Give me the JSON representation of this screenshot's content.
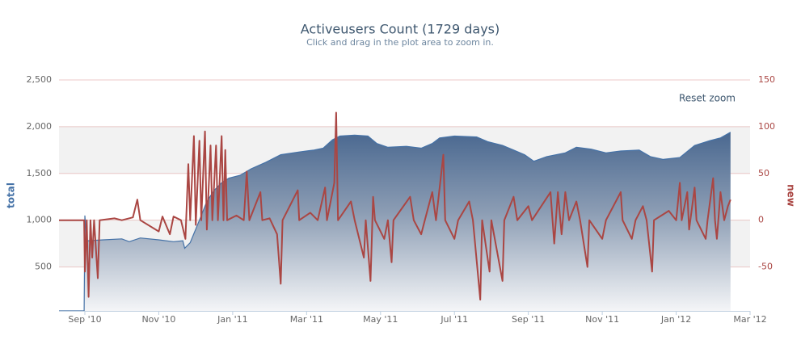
{
  "chart_data": {
    "type": "area-line",
    "title": "Activeusers Count (1729 days)",
    "subtitle": "Click and drag in the plot area to zoom in.",
    "button": "Reset zoom",
    "y_label": "total",
    "y2_label": "new",
    "xlim": [
      -0.7,
      18.0
    ],
    "xticks": [
      {
        "value": 0,
        "label": "Sep '10"
      },
      {
        "value": 2,
        "label": "Nov '10"
      },
      {
        "value": 4,
        "label": "Jan '11"
      },
      {
        "value": 6,
        "label": "Mar '11"
      },
      {
        "value": 8,
        "label": "May '11"
      },
      {
        "value": 10,
        "label": "Jul '11"
      },
      {
        "value": 12,
        "label": "Sep '11"
      },
      {
        "value": 14,
        "label": "Nov '11"
      },
      {
        "value": 16,
        "label": "Jan '12"
      },
      {
        "value": 18,
        "label": "Mar '12"
      }
    ],
    "ylim": [
      30,
      2500
    ],
    "yticks": [
      500,
      {
        "value": 1000,
        "label": "1,000"
      },
      {
        "value": 1500,
        "label": "1,500"
      },
      {
        "value": 2000,
        "label": "2,000"
      },
      {
        "value": 2500,
        "label": "2,500"
      }
    ],
    "y2lim": [
      -97,
      150
    ],
    "y2ticks": [
      -50,
      0,
      50,
      100,
      150
    ],
    "grid": true,
    "alternate_bands": true,
    "series": [
      {
        "name": "total",
        "color": "#4572a7",
        "kind": "area",
        "x": [
          -0.7,
          -0.02,
          0,
          0.05,
          0.5,
          1.0,
          1.2,
          1.5,
          2.0,
          2.4,
          2.65,
          2.7,
          2.85,
          3.1,
          3.3,
          3.5,
          3.7,
          3.9,
          4.2,
          4.5,
          4.9,
          5.3,
          5.8,
          6.2,
          6.45,
          6.7,
          6.9,
          7.3,
          7.66,
          7.9,
          8.2,
          8.7,
          9.1,
          9.4,
          9.6,
          10.0,
          10.6,
          10.9,
          11.3,
          11.6,
          11.9,
          12.15,
          12.5,
          13.0,
          13.3,
          13.7,
          14.1,
          14.5,
          15.0,
          15.3,
          15.65,
          16.1,
          16.5,
          16.9,
          17.2,
          17.47
        ],
        "values": [
          30,
          30,
          1050,
          780,
          790,
          800,
          770,
          810,
          790,
          770,
          780,
          700,
          760,
          1000,
          1200,
          1320,
          1400,
          1450,
          1480,
          1550,
          1620,
          1700,
          1730,
          1750,
          1770,
          1860,
          1900,
          1910,
          1900,
          1820,
          1780,
          1790,
          1770,
          1820,
          1880,
          1900,
          1890,
          1840,
          1800,
          1750,
          1700,
          1630,
          1680,
          1720,
          1780,
          1760,
          1720,
          1740,
          1750,
          1680,
          1650,
          1670,
          1800,
          1850,
          1880,
          1940
        ]
      },
      {
        "name": "new",
        "color": "#aa4643",
        "kind": "line",
        "axis": "y2",
        "x": [
          -0.7,
          -0.02,
          0,
          0.05,
          0.1,
          0.15,
          0.2,
          0.25,
          0.35,
          0.4,
          0.8,
          1.0,
          1.3,
          1.42,
          1.5,
          2.0,
          2.1,
          2.3,
          2.4,
          2.6,
          2.72,
          2.8,
          2.85,
          2.95,
          3.0,
          3.1,
          3.15,
          3.25,
          3.3,
          3.4,
          3.45,
          3.55,
          3.6,
          3.7,
          3.75,
          3.8,
          3.85,
          4.1,
          4.3,
          4.38,
          4.45,
          4.75,
          4.8,
          5.0,
          5.2,
          5.3,
          5.35,
          5.76,
          5.8,
          6.1,
          6.3,
          6.5,
          6.55,
          6.75,
          6.8,
          6.85,
          7.2,
          7.3,
          7.55,
          7.6,
          7.73,
          7.8,
          7.85,
          8.1,
          8.2,
          8.3,
          8.35,
          8.8,
          8.9,
          9.1,
          9.2,
          9.4,
          9.5,
          9.7,
          9.75,
          10.0,
          10.1,
          10.4,
          10.5,
          10.7,
          10.75,
          10.95,
          11.0,
          11.3,
          11.35,
          11.6,
          11.7,
          12.0,
          12.1,
          12.6,
          12.7,
          12.8,
          12.9,
          13.0,
          13.1,
          13.3,
          13.4,
          13.6,
          13.65,
          14.0,
          14.1,
          14.5,
          14.55,
          14.8,
          14.9,
          15.1,
          15.2,
          15.35,
          15.4,
          15.8,
          16.0,
          16.1,
          16.15,
          16.3,
          16.35,
          16.5,
          16.55,
          16.8,
          16.85,
          17.0,
          17.05,
          17.1,
          17.2,
          17.3,
          17.4,
          17.47
        ],
        "values": [
          0,
          0,
          -55,
          0,
          -82,
          0,
          -40,
          0,
          -62,
          0,
          2,
          0,
          3,
          22,
          0,
          -12,
          4,
          -15,
          4,
          0,
          -20,
          60,
          0,
          90,
          -5,
          85,
          0,
          95,
          -10,
          80,
          0,
          80,
          0,
          90,
          0,
          75,
          0,
          5,
          0,
          52,
          0,
          30,
          0,
          2,
          -15,
          -68,
          0,
          32,
          0,
          8,
          0,
          35,
          0,
          40,
          115,
          0,
          20,
          0,
          -40,
          0,
          -65,
          25,
          0,
          -20,
          0,
          -45,
          0,
          25,
          0,
          -15,
          0,
          30,
          0,
          70,
          0,
          -20,
          0,
          20,
          0,
          -85,
          0,
          -55,
          0,
          -65,
          0,
          25,
          0,
          15,
          0,
          30,
          -25,
          30,
          -15,
          30,
          0,
          20,
          0,
          -50,
          0,
          -20,
          0,
          30,
          0,
          -20,
          0,
          15,
          0,
          -55,
          0,
          10,
          0,
          40,
          0,
          30,
          -10,
          35,
          0,
          -20,
          0,
          45,
          0,
          -20,
          30,
          0,
          15,
          22
        ]
      }
    ]
  }
}
